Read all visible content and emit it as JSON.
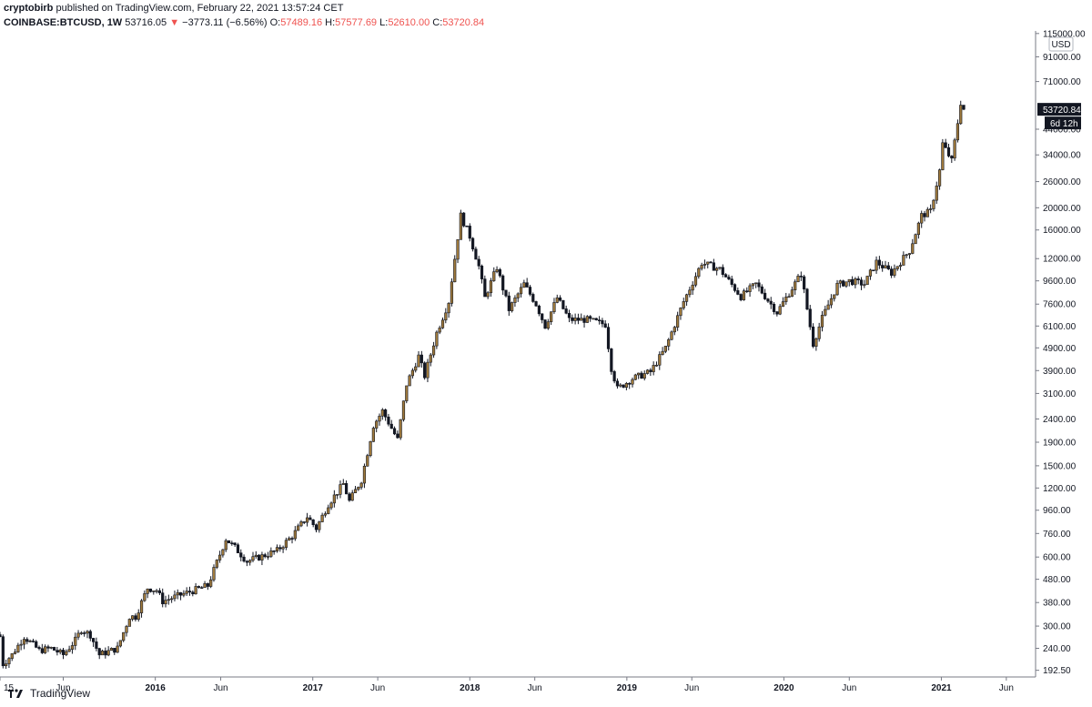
{
  "header": {
    "author": "cryptobirb",
    "published_text": "published on TradingView.com, February 22, 2021 13:57:24 CET",
    "symbol": "COINBASE:BTCUSD",
    "interval": "1W",
    "last_price": "53716.05",
    "down_arrow": "▼",
    "change": "−3773.11 (−6.56%)",
    "o_label": "O:",
    "o_value": "57489.16",
    "h_label": "H:",
    "h_value": "57577.69",
    "l_label": "L:",
    "l_value": "52610.00",
    "c_label": "C:",
    "c_value": "53720.84"
  },
  "price_badge": "53720.84",
  "countdown_badge": "6d 12h",
  "currency_label": "USD",
  "footer": {
    "brand": "TradingView"
  },
  "colors": {
    "candle_fill": "#a07a3c",
    "outline": "#131722",
    "badge": "#131722",
    "axis_line": "#787b86"
  },
  "chart_data": {
    "type": "candlestick",
    "y_scale": "log",
    "ylim": [
      180,
      118000
    ],
    "xlim": [
      "2015-01-05",
      "2021-08-08"
    ],
    "x_ticks": [
      {
        "label": "15",
        "date": "2015-01-05"
      },
      {
        "label": "Jun",
        "date": "2015-06-01"
      },
      {
        "label": "2016",
        "date": "2016-01-01"
      },
      {
        "label": "Jun",
        "date": "2016-06-01"
      },
      {
        "label": "2017",
        "date": "2017-01-01"
      },
      {
        "label": "Jun",
        "date": "2017-06-01"
      },
      {
        "label": "2018",
        "date": "2018-01-01"
      },
      {
        "label": "Jun",
        "date": "2018-06-01"
      },
      {
        "label": "2019",
        "date": "2019-01-01"
      },
      {
        "label": "Jun",
        "date": "2019-06-01"
      },
      {
        "label": "2020",
        "date": "2020-01-01"
      },
      {
        "label": "Jun",
        "date": "2020-06-01"
      },
      {
        "label": "2021",
        "date": "2021-01-01"
      },
      {
        "label": "Jun",
        "date": "2021-06-01"
      }
    ],
    "y_ticks": [
      "115000.00",
      "91000.00",
      "71000.00",
      "44000.00",
      "34000.00",
      "26000.00",
      "20000.00",
      "16000.00",
      "12000.00",
      "9600.00",
      "7600.00",
      "6100.00",
      "4900.00",
      "3900.00",
      "3100.00",
      "2400.00",
      "1900.00",
      "1500.00",
      "1200.00",
      "960.00",
      "760.00",
      "600.00",
      "480.00",
      "380.00",
      "300.00",
      "240.00",
      "192.50"
    ],
    "weekly_close_path": [
      [
        "2015-01-05",
        270
      ],
      [
        "2015-01-12",
        205
      ],
      [
        "2015-02-02",
        225
      ],
      [
        "2015-03-02",
        270
      ],
      [
        "2015-04-06",
        235
      ],
      [
        "2015-05-04",
        240
      ],
      [
        "2015-06-01",
        225
      ],
      [
        "2015-06-29",
        260
      ],
      [
        "2015-07-13",
        290
      ],
      [
        "2015-08-03",
        275
      ],
      [
        "2015-08-24",
        225
      ],
      [
        "2015-10-05",
        240
      ],
      [
        "2015-11-02",
        330
      ],
      [
        "2015-11-16",
        330
      ],
      [
        "2015-12-14",
        440
      ],
      [
        "2016-01-04",
        430
      ],
      [
        "2016-01-18",
        385
      ],
      [
        "2016-03-07",
        415
      ],
      [
        "2016-05-02",
        450
      ],
      [
        "2016-06-13",
        720
      ],
      [
        "2016-07-04",
        660
      ],
      [
        "2016-08-01",
        575
      ],
      [
        "2016-09-05",
        605
      ],
      [
        "2016-10-10",
        640
      ],
      [
        "2016-11-14",
        740
      ],
      [
        "2016-12-19",
        900
      ],
      [
        "2017-01-09",
        800
      ],
      [
        "2017-02-06",
        1020
      ],
      [
        "2017-03-13",
        1250
      ],
      [
        "2017-03-27",
        1050
      ],
      [
        "2017-04-24",
        1300
      ],
      [
        "2017-05-22",
        2250
      ],
      [
        "2017-06-12",
        2600
      ],
      [
        "2017-07-17",
        1950
      ],
      [
        "2017-08-07",
        3400
      ],
      [
        "2017-09-04",
        4500
      ],
      [
        "2017-09-18",
        3700
      ],
      [
        "2017-10-16",
        5700
      ],
      [
        "2017-11-13",
        7800
      ],
      [
        "2017-12-11",
        18500
      ],
      [
        "2018-01-01",
        15000
      ],
      [
        "2018-01-22",
        11100
      ],
      [
        "2018-02-05",
        8100
      ],
      [
        "2018-03-05",
        11000
      ],
      [
        "2018-04-02",
        7200
      ],
      [
        "2018-05-07",
        9300
      ],
      [
        "2018-06-04",
        7600
      ],
      [
        "2018-06-25",
        6100
      ],
      [
        "2018-07-23",
        8100
      ],
      [
        "2018-08-20",
        6500
      ],
      [
        "2018-10-01",
        6500
      ],
      [
        "2018-11-12",
        6200
      ],
      [
        "2018-11-26",
        4000
      ],
      [
        "2018-12-10",
        3250
      ],
      [
        "2019-01-14",
        3600
      ],
      [
        "2019-02-25",
        3850
      ],
      [
        "2019-04-01",
        4900
      ],
      [
        "2019-05-13",
        7800
      ],
      [
        "2019-06-24",
        11500
      ],
      [
        "2019-08-05",
        10800
      ],
      [
        "2019-09-23",
        8200
      ],
      [
        "2019-10-28",
        9300
      ],
      [
        "2019-12-16",
        7000
      ],
      [
        "2020-02-10",
        10300
      ],
      [
        "2020-03-09",
        5100
      ],
      [
        "2020-03-30",
        6600
      ],
      [
        "2020-05-04",
        9200
      ],
      [
        "2020-06-01",
        9600
      ],
      [
        "2020-07-06",
        9300
      ],
      [
        "2020-08-03",
        11600
      ],
      [
        "2020-09-07",
        10400
      ],
      [
        "2020-10-19",
        13000
      ],
      [
        "2020-11-16",
        18500
      ],
      [
        "2020-12-07",
        19300
      ],
      [
        "2020-12-28",
        29000
      ],
      [
        "2021-01-04",
        38000
      ],
      [
        "2021-01-25",
        32000
      ],
      [
        "2021-02-08",
        47000
      ],
      [
        "2021-02-15",
        57500
      ],
      [
        "2021-02-22",
        53720.84
      ]
    ]
  }
}
